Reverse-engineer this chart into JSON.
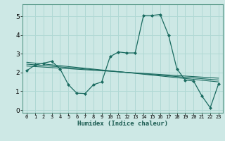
{
  "xlabel": "Humidex (Indice chaleur)",
  "background_color": "#cde8e5",
  "grid_color": "#b0d8d4",
  "line_color": "#1a6b60",
  "spine_color": "#5a9a8a",
  "x_ticks": [
    0,
    1,
    2,
    3,
    4,
    5,
    6,
    7,
    8,
    9,
    10,
    11,
    12,
    13,
    14,
    15,
    16,
    17,
    18,
    19,
    20,
    21,
    22,
    23
  ],
  "y_ticks": [
    0,
    1,
    2,
    3,
    4,
    5
  ],
  "ylim": [
    -0.15,
    5.65
  ],
  "xlim": [
    -0.5,
    23.5
  ],
  "main_series": [
    [
      0,
      2.1
    ],
    [
      1,
      2.4
    ],
    [
      2,
      2.5
    ],
    [
      3,
      2.6
    ],
    [
      4,
      2.2
    ],
    [
      5,
      1.35
    ],
    [
      6,
      0.9
    ],
    [
      7,
      0.88
    ],
    [
      8,
      1.35
    ],
    [
      9,
      1.5
    ],
    [
      10,
      2.85
    ],
    [
      11,
      3.1
    ],
    [
      12,
      3.05
    ],
    [
      13,
      3.05
    ],
    [
      14,
      5.05
    ],
    [
      15,
      5.05
    ],
    [
      16,
      5.1
    ],
    [
      17,
      4.0
    ],
    [
      18,
      2.2
    ],
    [
      19,
      1.6
    ],
    [
      20,
      1.55
    ],
    [
      21,
      0.75
    ],
    [
      22,
      0.12
    ],
    [
      23,
      1.4
    ]
  ],
  "trend_lines": [
    [
      [
        0,
        2.55
      ],
      [
        23,
        1.5
      ]
    ],
    [
      [
        0,
        2.45
      ],
      [
        23,
        1.6
      ]
    ],
    [
      [
        0,
        2.35
      ],
      [
        23,
        1.7
      ]
    ]
  ]
}
